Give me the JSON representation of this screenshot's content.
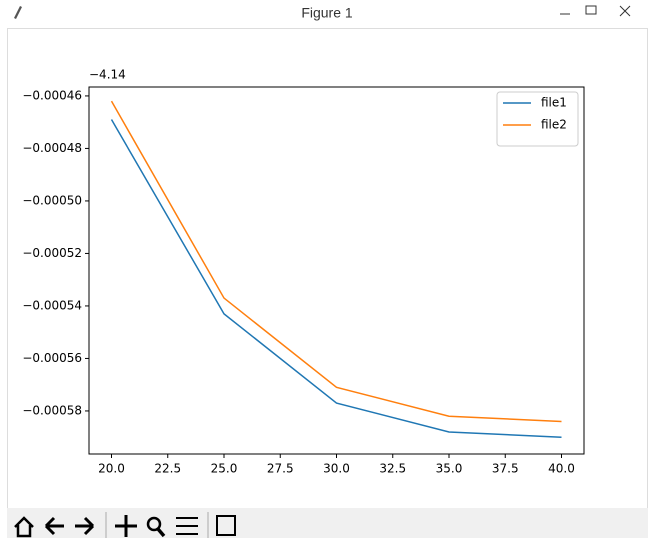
{
  "window": {
    "title": "Figure 1"
  },
  "chart_data": {
    "type": "line",
    "y_offset_label": "−4.14",
    "x": [
      20,
      25,
      30,
      35,
      40
    ],
    "series": [
      {
        "name": "file1",
        "color": "#1f77b4",
        "values": [
          -0.000469,
          -0.000543,
          -0.000577,
          -0.000588,
          -0.00059
        ]
      },
      {
        "name": "file2",
        "color": "#ff7f0e",
        "values": [
          -0.000462,
          -0.000537,
          -0.000571,
          -0.000582,
          -0.000584
        ]
      }
    ],
    "xlim": [
      19,
      41
    ],
    "xticks": [
      {
        "value": 20,
        "label": "20.0"
      },
      {
        "value": 22.5,
        "label": "22.5"
      },
      {
        "value": 25,
        "label": "25.0"
      },
      {
        "value": 27.5,
        "label": "27.5"
      },
      {
        "value": 30,
        "label": "30.0"
      },
      {
        "value": 32.5,
        "label": "32.5"
      },
      {
        "value": 35,
        "label": "35.0"
      },
      {
        "value": 37.5,
        "label": "37.5"
      },
      {
        "value": 40,
        "label": "40.0"
      }
    ],
    "ylim": [
      -0.0005964,
      -0.0004566
    ],
    "yticks": [
      {
        "value": -0.00058,
        "label": "−0.00058"
      },
      {
        "value": -0.00056,
        "label": "−0.00056"
      },
      {
        "value": -0.00054,
        "label": "−0.00054"
      },
      {
        "value": -0.00052,
        "label": "−0.00052"
      },
      {
        "value": -0.0005,
        "label": "−0.00050"
      },
      {
        "value": -0.00048,
        "label": "−0.00048"
      },
      {
        "value": -0.00046,
        "label": "−0.00046"
      }
    ],
    "legend": "upper right",
    "grid": false
  }
}
